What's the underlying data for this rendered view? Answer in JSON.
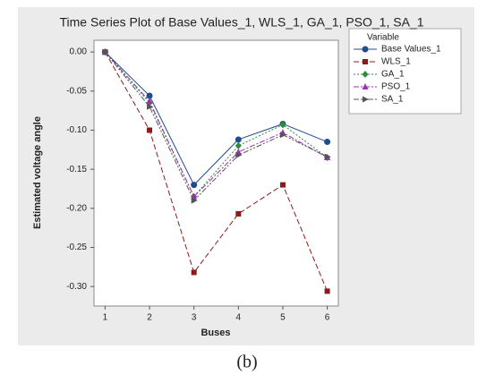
{
  "chart_data": {
    "type": "line",
    "title": "Time Series Plot of Base Values_1, WLS_1, GA_1, PSO_1, SA_1",
    "x_label": "Buses",
    "y_label": "Estimated voltage angle",
    "legend_title": "Variable",
    "legend_position": "right",
    "caption": "(b)",
    "x": [
      1,
      2,
      3,
      4,
      5,
      6
    ],
    "xlim": [
      0.75,
      6.25
    ],
    "xticks": [
      1,
      2,
      3,
      4,
      5,
      6
    ],
    "ylim": [
      -0.325,
      0.015
    ],
    "yticks": [
      {
        "value": 0,
        "label": "0.00"
      },
      {
        "value": -0.05,
        "label": "-0.05"
      },
      {
        "value": -0.1,
        "label": "-0.10"
      },
      {
        "value": -0.15,
        "label": "-0.15"
      },
      {
        "value": -0.2,
        "label": "-0.20"
      },
      {
        "value": -0.25,
        "label": "-0.25"
      },
      {
        "value": -0.3,
        "label": "-0.30"
      }
    ],
    "series": [
      {
        "name": "Base Values_1",
        "color": "#1f4e8c",
        "marker": "circle",
        "dash": "solid",
        "values": [
          0,
          -0.056,
          -0.17,
          -0.112,
          -0.092,
          -0.115
        ]
      },
      {
        "name": "WLS_1",
        "color": "#8b1a1a",
        "marker": "square",
        "dash": "dashed",
        "values": [
          0,
          -0.1,
          -0.282,
          -0.207,
          -0.17,
          -0.306
        ]
      },
      {
        "name": "GA_1",
        "color": "#2e8b3a",
        "marker": "diamond",
        "dash": "dotted",
        "values": [
          0,
          -0.065,
          -0.185,
          -0.12,
          -0.093,
          -0.135
        ]
      },
      {
        "name": "PSO_1",
        "color": "#9b30b0",
        "marker": "triangle",
        "dash": "dashdot",
        "values": [
          0,
          -0.063,
          -0.185,
          -0.128,
          -0.103,
          -0.135
        ]
      },
      {
        "name": "SA_1",
        "color": "#555555",
        "marker": "triangle-right",
        "dash": "dashdotdot",
        "values": [
          0,
          -0.07,
          -0.19,
          -0.132,
          -0.106,
          -0.134
        ]
      }
    ]
  }
}
